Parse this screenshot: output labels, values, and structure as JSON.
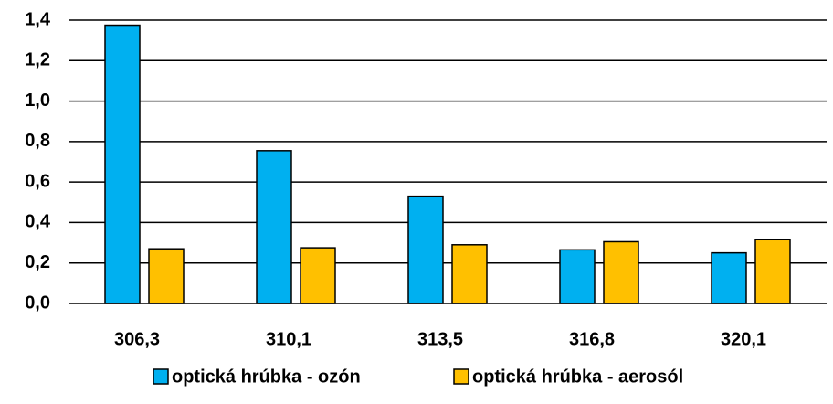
{
  "chart_data": {
    "type": "bar",
    "categories": [
      "306,3",
      "310,1",
      "313,5",
      "316,8",
      "320,1"
    ],
    "series": [
      {
        "name": "optická hrúbka - ozón",
        "color": "#00b0f0",
        "values": [
          1.375,
          0.755,
          0.53,
          0.265,
          0.25
        ]
      },
      {
        "name": "optická hrúbka - aerosól",
        "color": "#ffc000",
        "values": [
          0.27,
          0.275,
          0.29,
          0.305,
          0.315
        ]
      }
    ],
    "ylim": [
      0,
      1.4
    ],
    "yticks": [
      {
        "value": 0,
        "label": "0,0"
      },
      {
        "value": 0.2,
        "label": "0,2"
      },
      {
        "value": 0.4,
        "label": "0,4"
      },
      {
        "value": 0.6,
        "label": "0,6"
      },
      {
        "value": 0.8,
        "label": "0,8"
      },
      {
        "value": 1.0,
        "label": "1,0"
      },
      {
        "value": 1.2,
        "label": "1,2"
      },
      {
        "value": 1.4,
        "label": "1,4"
      }
    ],
    "grid": true,
    "legend": "bottom"
  }
}
